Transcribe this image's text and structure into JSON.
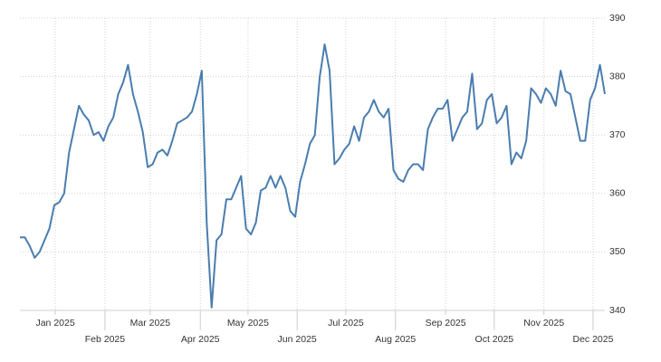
{
  "chart_data": {
    "type": "line",
    "series": [
      {
        "color": "#4a7daf",
        "values": [
          352.5,
          352.5,
          351,
          349,
          350,
          352,
          354,
          358,
          358.5,
          360,
          367,
          371,
          375,
          373.5,
          372.5,
          370,
          370.5,
          369,
          371.5,
          373,
          377,
          379,
          382,
          377,
          374,
          370.5,
          364.5,
          365,
          367,
          367.5,
          366.5,
          369,
          372,
          372.5,
          373,
          374,
          377,
          381,
          355,
          340.5,
          352,
          353,
          359,
          359,
          361,
          363,
          354,
          353,
          355,
          360.5,
          361,
          363,
          361,
          363,
          361,
          357,
          356,
          362,
          365,
          368.5,
          370,
          380,
          385.5,
          381,
          365,
          366,
          367.5,
          368.5,
          371.5,
          369,
          373,
          374,
          376,
          374,
          373,
          374.5,
          364,
          362.5,
          362,
          364,
          365,
          365,
          364,
          371,
          373,
          374.5,
          374.5,
          376,
          369,
          371,
          373,
          374,
          380.5,
          371,
          372,
          376,
          377,
          372,
          373,
          375,
          365,
          367,
          366,
          369,
          378,
          377,
          375.5,
          378,
          377,
          375,
          381,
          377.5,
          377,
          373,
          369,
          369,
          376,
          378,
          382,
          377
        ]
      }
    ],
    "xlim": [
      0,
      119
    ],
    "xticks": [
      {
        "value": 7.2,
        "label": "Jan 2025"
      },
      {
        "value": 17.3,
        "label": "Feb 2025"
      },
      {
        "value": 26.5,
        "label": "Mar 2025"
      },
      {
        "value": 36.7,
        "label": "Apr 2025"
      },
      {
        "value": 46.4,
        "label": "May 2025"
      },
      {
        "value": 56.4,
        "label": "Jun 2025"
      },
      {
        "value": 66.3,
        "label": "Jul 2025"
      },
      {
        "value": 76.4,
        "label": "Aug 2025"
      },
      {
        "value": 86.6,
        "label": "Sep 2025"
      },
      {
        "value": 96.5,
        "label": "Oct 2025"
      },
      {
        "value": 106.6,
        "label": "Nov 2025"
      },
      {
        "value": 116.6,
        "label": "Dec 2025"
      }
    ],
    "ylim": [
      340,
      390
    ],
    "yticks": [
      340,
      350,
      360,
      370,
      380,
      390
    ],
    "grid": true
  }
}
